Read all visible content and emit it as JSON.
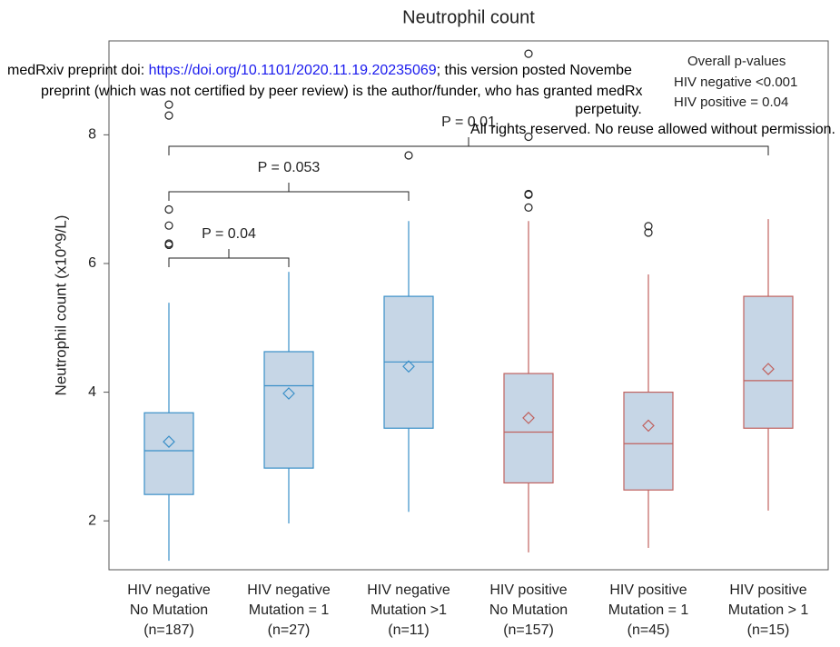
{
  "chart_data": {
    "type": "box",
    "title": "Neutrophil count",
    "y_label": "Neutrophil count (x10^9/L)",
    "ylim": [
      1.24,
      9.46
    ],
    "yticks": [
      2,
      4,
      6,
      8
    ],
    "box_fill": "#c6d6e6",
    "categories": [
      [
        "HIV negative",
        "No Mutation",
        "(n=187)"
      ],
      [
        "HIV negative",
        "Mutation = 1",
        "(n=27)"
      ],
      [
        "HIV negative",
        "Mutation >1",
        "(n=11)"
      ],
      [
        "HIV positive",
        "No Mutation",
        "(n=157)"
      ],
      [
        "HIV positive",
        "Mutation = 1",
        "(n=45)"
      ],
      [
        "HIV positive",
        "Mutation > 1",
        "(n=15)"
      ]
    ],
    "boxes": [
      {
        "color": "#3a8fc8",
        "low": 1.38,
        "q1": 2.41,
        "median": 3.09,
        "q3": 3.68,
        "high": 5.39,
        "mean": 3.23,
        "outliers": [
          6.29,
          6.31,
          6.59,
          6.84,
          8.3,
          8.47
        ]
      },
      {
        "color": "#3a8fc8",
        "low": 1.96,
        "q1": 2.82,
        "median": 4.1,
        "q3": 4.63,
        "high": 5.87,
        "mean": 3.98,
        "outliers": []
      },
      {
        "color": "#3a8fc8",
        "low": 2.14,
        "q1": 3.44,
        "median": 4.47,
        "q3": 5.49,
        "high": 6.66,
        "mean": 4.4,
        "outliers": [
          7.68
        ]
      },
      {
        "color": "#c0625f",
        "low": 1.51,
        "q1": 2.59,
        "median": 3.38,
        "q3": 4.29,
        "high": 6.66,
        "mean": 3.6,
        "outliers": [
          6.87,
          7.07,
          7.08,
          7.97,
          9.26
        ]
      },
      {
        "color": "#c0625f",
        "low": 1.58,
        "q1": 2.48,
        "median": 3.2,
        "q3": 4.0,
        "high": 5.83,
        "mean": 3.48,
        "outliers": [
          6.48,
          6.58
        ]
      },
      {
        "color": "#c0625f",
        "low": 2.16,
        "q1": 3.44,
        "median": 4.18,
        "q3": 5.49,
        "high": 6.69,
        "mean": 4.36,
        "outliers": []
      }
    ],
    "brackets": [
      {
        "from": 0,
        "to": 1,
        "label": "P = 0.04"
      },
      {
        "from": 0,
        "to": 2,
        "label": "P = 0.053"
      },
      {
        "from": 0,
        "to": 5,
        "label": "P = 0.01"
      }
    ],
    "overall": {
      "title": "Overall p-values",
      "lines": [
        {
          "text": "HIV negative <0.001",
          "color": "#3a8fc8"
        },
        {
          "text": "HIV positive = 0.04",
          "color": "#c0625f"
        }
      ]
    }
  },
  "watermark": {
    "line1": [
      "medRxiv preprint doi: ",
      "https://doi.org/10.1101/2020.11.19.20235069",
      "; this version posted Novembe"
    ],
    "line2": "preprint (which was not certified by peer review) is the author/funder, who has granted medRx",
    "line3": "perpetuity.",
    "line4": "All rights reserved. No reuse allowed without permission."
  }
}
